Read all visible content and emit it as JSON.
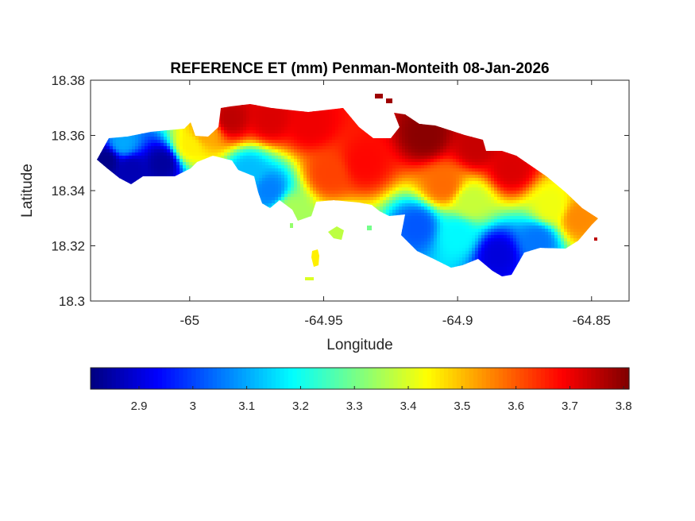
{
  "chart_data": {
    "type": "heatmap",
    "title": "REFERENCE ET (mm) Penman-Monteith 08-Jan-2026",
    "xlabel": "Longitude",
    "ylabel": "Latitude",
    "xlim": [
      -65.037,
      -64.836
    ],
    "ylim": [
      18.3,
      18.38
    ],
    "xticks": [
      {
        "value": -65.0,
        "label": "-65"
      },
      {
        "value": -64.95,
        "label": "-64.95"
      },
      {
        "value": -64.9,
        "label": "-64.9"
      },
      {
        "value": -64.85,
        "label": "-64.85"
      }
    ],
    "yticks": [
      {
        "value": 18.3,
        "label": "18.3"
      },
      {
        "value": 18.32,
        "label": "18.32"
      },
      {
        "value": 18.34,
        "label": "18.34"
      },
      {
        "value": 18.36,
        "label": "18.36"
      },
      {
        "value": 18.38,
        "label": "18.38"
      }
    ],
    "grid": false,
    "colormap": "jet",
    "colorbar": {
      "orientation": "horizontal",
      "location": "below",
      "range": [
        2.81,
        3.81
      ],
      "ticks": [
        {
          "value": 2.9,
          "label": "2.9"
        },
        {
          "value": 3.0,
          "label": "3"
        },
        {
          "value": 3.1,
          "label": "3.1"
        },
        {
          "value": 3.2,
          "label": "3.2"
        },
        {
          "value": 3.3,
          "label": "3.3"
        },
        {
          "value": 3.4,
          "label": "3.4"
        },
        {
          "value": 3.5,
          "label": "3.5"
        },
        {
          "value": 3.6,
          "label": "3.6"
        },
        {
          "value": 3.7,
          "label": "3.7"
        },
        {
          "value": 3.8,
          "label": "3.8"
        }
      ]
    },
    "field_samples": [
      {
        "lon": -65.031,
        "lat": 18.351,
        "value": 2.82
      },
      {
        "lon": -65.022,
        "lat": 18.348,
        "value": 2.86
      },
      {
        "lon": -65.01,
        "lat": 18.35,
        "value": 2.84
      },
      {
        "lon": -65.025,
        "lat": 18.357,
        "value": 3.1
      },
      {
        "lon": -65.0,
        "lat": 18.356,
        "value": 3.45
      },
      {
        "lon": -64.994,
        "lat": 18.361,
        "value": 3.52
      },
      {
        "lon": -64.985,
        "lat": 18.366,
        "value": 3.75
      },
      {
        "lon": -64.97,
        "lat": 18.366,
        "value": 3.72
      },
      {
        "lon": -64.955,
        "lat": 18.364,
        "value": 3.7
      },
      {
        "lon": -64.978,
        "lat": 18.347,
        "value": 3.12
      },
      {
        "lon": -64.97,
        "lat": 18.34,
        "value": 3.06
      },
      {
        "lon": -64.962,
        "lat": 18.333,
        "value": 3.35
      },
      {
        "lon": -64.948,
        "lat": 18.346,
        "value": 3.62
      },
      {
        "lon": -64.935,
        "lat": 18.35,
        "value": 3.68
      },
      {
        "lon": -64.912,
        "lat": 18.36,
        "value": 3.8
      },
      {
        "lon": -64.893,
        "lat": 18.356,
        "value": 3.74
      },
      {
        "lon": -64.88,
        "lat": 18.348,
        "value": 3.72
      },
      {
        "lon": -64.905,
        "lat": 18.342,
        "value": 3.58
      },
      {
        "lon": -64.865,
        "lat": 18.334,
        "value": 3.42
      },
      {
        "lon": -64.855,
        "lat": 18.33,
        "value": 3.55
      },
      {
        "lon": -64.915,
        "lat": 18.327,
        "value": 3.02
      },
      {
        "lon": -64.9,
        "lat": 18.324,
        "value": 3.18
      },
      {
        "lon": -64.885,
        "lat": 18.317,
        "value": 2.9
      },
      {
        "lon": -64.87,
        "lat": 18.322,
        "value": 3.05
      },
      {
        "lon": -64.895,
        "lat": 18.336,
        "value": 3.38
      },
      {
        "lon": -64.957,
        "lat": 18.306,
        "value": 3.4
      },
      {
        "lon": -64.943,
        "lat": 18.324,
        "value": 3.28
      }
    ]
  }
}
